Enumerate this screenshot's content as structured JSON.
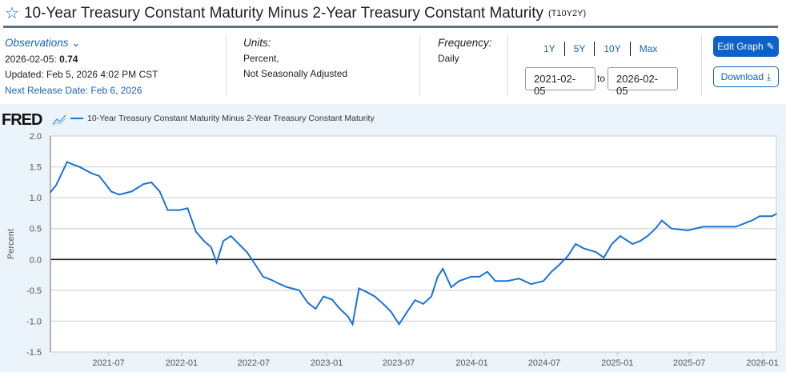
{
  "header": {
    "title": "10-Year Treasury Constant Maturity Minus 2-Year Treasury Constant Maturity",
    "series_id": "(T10Y2Y)",
    "star_icon": "star-outline-icon"
  },
  "observations": {
    "label": "Observations",
    "latest_date": "2026-02-05:",
    "latest_value": "0.74",
    "updated": "Updated: Feb 5, 2026 4:02 PM CST",
    "next_release": "Next Release Date: Feb 6, 2026"
  },
  "units": {
    "label": "Units:",
    "line1": "Percent,",
    "line2": "Not Seasonally Adjusted"
  },
  "frequency": {
    "label": "Frequency:",
    "value": "Daily"
  },
  "ranges": [
    "1Y",
    "5Y",
    "10Y",
    "Max"
  ],
  "date_range": {
    "start": "2021-02-05",
    "to": "to",
    "end": "2026-02-05"
  },
  "buttons": {
    "edit": "Edit Graph",
    "download": "Download"
  },
  "chart_brand": "FRED",
  "colors": {
    "accent": "#0c62c9",
    "series": "#1a73d8",
    "chart_bg": "#ebf3fb"
  },
  "chart_data": {
    "type": "line",
    "legend": "10-Year Treasury Constant Maturity Minus 2-Year Treasury Constant Maturity",
    "ylabel": "Percent",
    "ylim": [
      -1.5,
      2.0
    ],
    "xlim": [
      "2021-02-05",
      "2026-02-05"
    ],
    "yticks": [
      "2.0",
      "1.5",
      "1.0",
      "0.5",
      "0.0",
      "-0.5",
      "-1.0",
      "-1.5"
    ],
    "xticks": [
      "2021-07",
      "2022-01",
      "2022-07",
      "2023-01",
      "2023-07",
      "2024-01",
      "2024-07",
      "2025-01",
      "2025-07",
      "2026-01"
    ],
    "grid": true,
    "series": [
      {
        "name": "10-Year Treasury Constant Maturity Minus 2-Year Treasury Constant Maturity",
        "points": [
          [
            "2021-02-05",
            1.09
          ],
          [
            "2021-02-19",
            1.2
          ],
          [
            "2021-03-19",
            1.58
          ],
          [
            "2021-03-29",
            1.55
          ],
          [
            "2021-04-19",
            1.5
          ],
          [
            "2021-05-18",
            1.4
          ],
          [
            "2021-06-08",
            1.35
          ],
          [
            "2021-07-08",
            1.1
          ],
          [
            "2021-07-28",
            1.05
          ],
          [
            "2021-08-28",
            1.1
          ],
          [
            "2021-09-27",
            1.22
          ],
          [
            "2021-10-17",
            1.25
          ],
          [
            "2021-11-07",
            1.1
          ],
          [
            "2021-11-27",
            0.8
          ],
          [
            "2021-12-27",
            0.8
          ],
          [
            "2022-01-16",
            0.83
          ],
          [
            "2022-02-06",
            0.45
          ],
          [
            "2022-02-26",
            0.3
          ],
          [
            "2022-03-16",
            0.2
          ],
          [
            "2022-03-30",
            -0.05
          ],
          [
            "2022-04-16",
            0.3
          ],
          [
            "2022-05-05",
            0.38
          ],
          [
            "2022-05-25",
            0.25
          ],
          [
            "2022-06-14",
            0.12
          ],
          [
            "2022-07-05",
            -0.08
          ],
          [
            "2022-07-25",
            -0.28
          ],
          [
            "2022-08-14",
            -0.33
          ],
          [
            "2022-09-05",
            -0.4
          ],
          [
            "2022-09-24",
            -0.45
          ],
          [
            "2022-10-24",
            -0.5
          ],
          [
            "2022-11-14",
            -0.7
          ],
          [
            "2022-12-04",
            -0.8
          ],
          [
            "2022-12-24",
            -0.6
          ],
          [
            "2023-01-14",
            -0.65
          ],
          [
            "2023-02-03",
            -0.8
          ],
          [
            "2023-02-23",
            -0.92
          ],
          [
            "2023-03-07",
            -1.05
          ],
          [
            "2023-03-23",
            -0.47
          ],
          [
            "2023-04-12",
            -0.53
          ],
          [
            "2023-05-02",
            -0.6
          ],
          [
            "2023-05-23",
            -0.72
          ],
          [
            "2023-06-12",
            -0.85
          ],
          [
            "2023-07-02",
            -1.05
          ],
          [
            "2023-07-22",
            -0.85
          ],
          [
            "2023-08-11",
            -0.66
          ],
          [
            "2023-09-01",
            -0.72
          ],
          [
            "2023-09-21",
            -0.6
          ],
          [
            "2023-10-07",
            -0.28
          ],
          [
            "2023-10-20",
            -0.15
          ],
          [
            "2023-11-10",
            -0.45
          ],
          [
            "2023-11-30",
            -0.35
          ],
          [
            "2023-12-30",
            -0.28
          ],
          [
            "2024-01-20",
            -0.28
          ],
          [
            "2024-02-09",
            -0.2
          ],
          [
            "2024-02-29",
            -0.35
          ],
          [
            "2024-03-30",
            -0.35
          ],
          [
            "2024-04-29",
            -0.31
          ],
          [
            "2024-05-29",
            -0.4
          ],
          [
            "2024-06-29",
            -0.35
          ],
          [
            "2024-07-19",
            -0.2
          ],
          [
            "2024-08-09",
            -0.08
          ],
          [
            "2024-08-29",
            0.05
          ],
          [
            "2024-09-18",
            0.25
          ],
          [
            "2024-10-08",
            0.18
          ],
          [
            "2024-11-08",
            0.12
          ],
          [
            "2024-11-28",
            0.03
          ],
          [
            "2024-12-18",
            0.25
          ],
          [
            "2025-01-08",
            0.38
          ],
          [
            "2025-02-08",
            0.25
          ],
          [
            "2025-02-28",
            0.3
          ],
          [
            "2025-03-18",
            0.38
          ],
          [
            "2025-04-07",
            0.5
          ],
          [
            "2025-04-23",
            0.63
          ],
          [
            "2025-05-17",
            0.5
          ],
          [
            "2025-06-27",
            0.47
          ],
          [
            "2025-08-05",
            0.53
          ],
          [
            "2025-09-16",
            0.53
          ],
          [
            "2025-10-26",
            0.53
          ],
          [
            "2025-12-05",
            0.63
          ],
          [
            "2025-12-25",
            0.7
          ],
          [
            "2026-01-25",
            0.7
          ],
          [
            "2026-02-05",
            0.74
          ]
        ]
      }
    ]
  }
}
